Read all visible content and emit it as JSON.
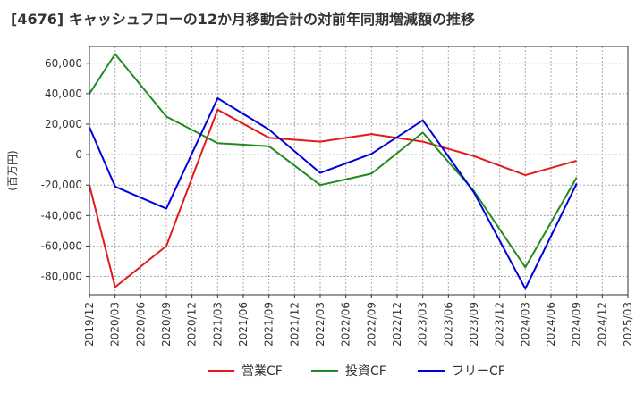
{
  "title": "[4676]  キャッシュフローの12か月移動合計の対前年同期増減額の推移",
  "chart_data": {
    "type": "line",
    "ylabel": "(百万円)",
    "ylim": [
      -92000,
      71000
    ],
    "yticks": [
      60000,
      40000,
      20000,
      0,
      -20000,
      -40000,
      -60000,
      -80000
    ],
    "ytick_labels": [
      "60,000",
      "40,000",
      "20,000",
      "0",
      "-20,000",
      "-40,000",
      "-60,000",
      "-80,000"
    ],
    "x": [
      "2019/12",
      "2020/03",
      "2020/06",
      "2020/09",
      "2020/12",
      "2021/03",
      "2021/06",
      "2021/09",
      "2021/12",
      "2022/03",
      "2022/06",
      "2022/09",
      "2022/12",
      "2023/03",
      "2023/06",
      "2023/09",
      "2023/12",
      "2024/03",
      "2024/06",
      "2024/09",
      "2024/12",
      "2025/03"
    ],
    "grid": true,
    "legend_position": "bottom",
    "series": [
      {
        "name": "営業CF",
        "color": "#e31a1c",
        "values": [
          -20000,
          -87000,
          null,
          -60000,
          null,
          29500,
          null,
          11000,
          null,
          8500,
          null,
          13500,
          null,
          8500,
          null,
          -1000,
          null,
          -13500,
          null,
          -4000,
          null,
          null
        ]
      },
      {
        "name": "投資CF",
        "color": "#228b22",
        "values": [
          40000,
          66000,
          null,
          25000,
          null,
          7500,
          null,
          5500,
          null,
          -20000,
          null,
          -12500,
          null,
          14500,
          null,
          -24000,
          null,
          -74000,
          null,
          -15000,
          null,
          null
        ]
      },
      {
        "name": "フリーCF",
        "color": "#0000dd",
        "values": [
          18000,
          -21000,
          null,
          -35500,
          null,
          37000,
          null,
          16500,
          null,
          -12000,
          null,
          500,
          null,
          22500,
          null,
          -25000,
          null,
          -88000,
          null,
          -19000,
          null,
          null
        ]
      }
    ]
  }
}
